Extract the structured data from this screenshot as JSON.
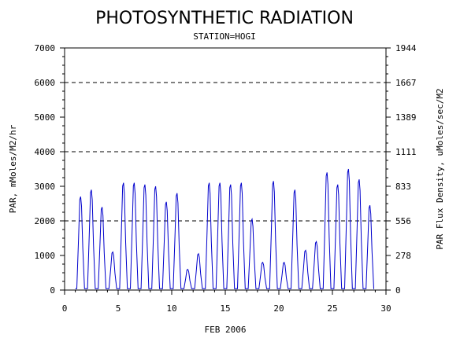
{
  "chart_data": {
    "type": "line",
    "title": "PHOTOSYNTHETIC RADIATION",
    "subtitle": "STATION=HOGI",
    "xlabel": "FEB 2006",
    "ylabel": "PAR, mMoles/M2/hr",
    "y2label": "PAR Flux Density, uMoles/sec/M2",
    "xlim": [
      0,
      30
    ],
    "ylim": [
      0,
      7000
    ],
    "x_ticks": [
      0,
      5,
      10,
      15,
      20,
      25,
      30
    ],
    "y_ticks": [
      0,
      1000,
      2000,
      3000,
      4000,
      5000,
      6000,
      7000
    ],
    "y2_ticks": [
      "0",
      "278",
      "556",
      "833",
      "1111",
      "1389",
      "1667",
      "1944"
    ],
    "gridlines_y": [
      2000,
      4000,
      6000
    ],
    "series": [
      {
        "color": "#0000cc",
        "daily_peaks": [
          [
            1.5,
            2700
          ],
          [
            2.5,
            2900
          ],
          [
            3.5,
            2400
          ],
          [
            4.5,
            1100
          ],
          [
            5.5,
            3100
          ],
          [
            6.5,
            3100
          ],
          [
            7.5,
            3050
          ],
          [
            8.5,
            3000
          ],
          [
            9.5,
            2550
          ],
          [
            10.5,
            2800
          ],
          [
            11.5,
            600
          ],
          [
            12.5,
            1050
          ],
          [
            13.5,
            3100
          ],
          [
            14.5,
            3100
          ],
          [
            15.5,
            3050
          ],
          [
            16.5,
            3100
          ],
          [
            17.5,
            2050
          ],
          [
            18.5,
            800
          ],
          [
            19.5,
            3150
          ],
          [
            20.5,
            800
          ],
          [
            21.5,
            2900
          ],
          [
            22.5,
            1150
          ],
          [
            23.5,
            1400
          ],
          [
            24.5,
            3400
          ],
          [
            25.5,
            3050
          ],
          [
            26.5,
            3500
          ],
          [
            27.5,
            3200
          ],
          [
            28.5,
            2450
          ]
        ],
        "x_start": 1.0,
        "x_end": 28.9
      }
    ]
  }
}
